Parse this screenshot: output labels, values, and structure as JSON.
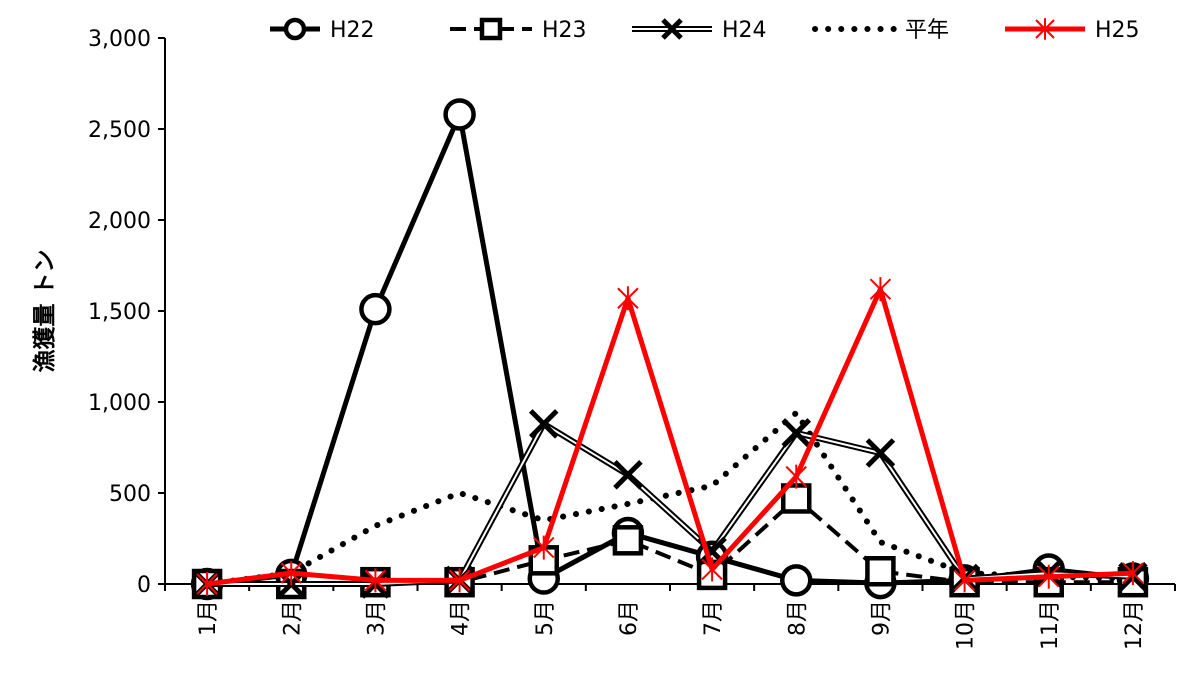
{
  "chart_data": {
    "type": "line",
    "title": "",
    "xlabel": "",
    "ylabel": "漁獲量 トン",
    "ylim": [
      0,
      3000
    ],
    "yticks": [
      0,
      500,
      1000,
      1500,
      2000,
      2500,
      3000
    ],
    "ytick_labels": [
      "0",
      "500",
      "1,000",
      "1,500",
      "2,000",
      "2,500",
      "3,000"
    ],
    "categories": [
      "1月",
      "2月",
      "3月",
      "4月",
      "5月",
      "6月",
      "7月",
      "8月",
      "9月",
      "10月",
      "11月",
      "12月"
    ],
    "grid": false,
    "legend_position": "top",
    "series": [
      {
        "name": "H22",
        "color": "#000000",
        "style": "solid-thick",
        "marker": "circle",
        "values": [
          0,
          50,
          1510,
          2580,
          30,
          280,
          150,
          20,
          5,
          20,
          80,
          30
        ]
      },
      {
        "name": "H23",
        "color": "#000000",
        "style": "dashed",
        "marker": "square",
        "values": [
          0,
          0,
          10,
          10,
          130,
          240,
          50,
          470,
          70,
          10,
          10,
          10
        ]
      },
      {
        "name": "H24",
        "color": "#000000",
        "style": "double",
        "marker": "x",
        "values": [
          0,
          0,
          0,
          20,
          880,
          600,
          180,
          830,
          720,
          30,
          60,
          40
        ]
      },
      {
        "name": "平年",
        "color": "#000000",
        "style": "dotted",
        "marker": "none",
        "values": [
          0,
          60,
          320,
          500,
          350,
          440,
          540,
          940,
          230,
          60,
          40,
          30
        ]
      },
      {
        "name": "H25",
        "color": "#ff0000",
        "style": "solid",
        "marker": "asterisk",
        "values": [
          0,
          60,
          20,
          20,
          200,
          1570,
          80,
          590,
          1620,
          20,
          40,
          60
        ]
      }
    ]
  }
}
